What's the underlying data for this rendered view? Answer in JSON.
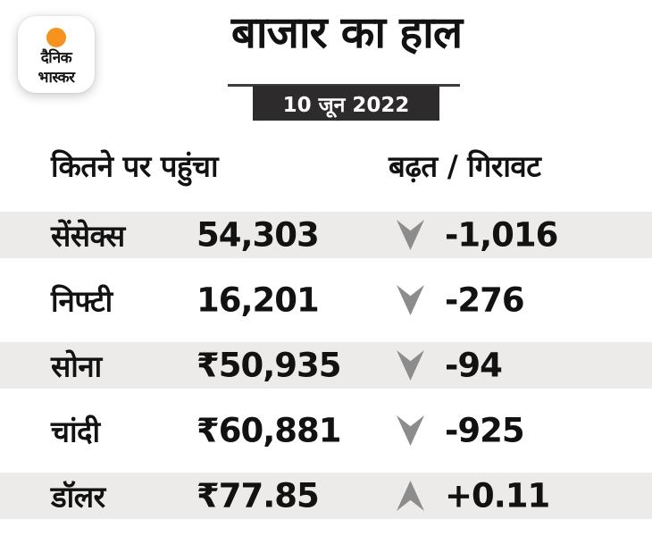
{
  "brand": {
    "line1": "दैनिक",
    "line2": "भास्कर",
    "sun_color": "#F6921E"
  },
  "header": {
    "title": "बाजार का हाल",
    "date": "10 जून 2022"
  },
  "columns": {
    "reached": "कितने पर पहुंचा",
    "change": "बढ़त / गिरावट"
  },
  "rows": [
    {
      "label": "सेंसेक्स",
      "value": "54,303",
      "direction": "down",
      "change": "-1,016"
    },
    {
      "label": "निफ्टी",
      "value": "16,201",
      "direction": "down",
      "change": "-276"
    },
    {
      "label": "सोना",
      "value": "₹50,935",
      "direction": "down",
      "change": "-94"
    },
    {
      "label": "चांदी",
      "value": "₹60,881",
      "direction": "down",
      "change": "-925"
    },
    {
      "label": "डॉलर",
      "value": "₹77.85",
      "direction": "up",
      "change": "+0.11"
    }
  ],
  "colors": {
    "stripe_gray": "#ECEBE9",
    "date_box": "#2D2B2B",
    "arrow_gray": "#8C8C8C",
    "text_black": "#121212",
    "brand_orange": "#F6921E"
  },
  "chart_data": {
    "type": "table",
    "title": "बाजार का हाल",
    "subtitle": "10 जून 2022",
    "columns": [
      "",
      "कितने पर पहुंचा",
      "बढ़त / गिरावट"
    ],
    "rows": [
      [
        "सेंसेक्स",
        "54,303",
        "-1,016"
      ],
      [
        "निफ्टी",
        "16,201",
        "-276"
      ],
      [
        "सोना",
        "₹50,935",
        "-94"
      ],
      [
        "चांदी",
        "₹60,881",
        "-925"
      ],
      [
        "डॉलर",
        "₹77.85",
        "+0.11"
      ]
    ],
    "notes": "negative changes shown with gray down arrow, positive with gray up arrow"
  }
}
